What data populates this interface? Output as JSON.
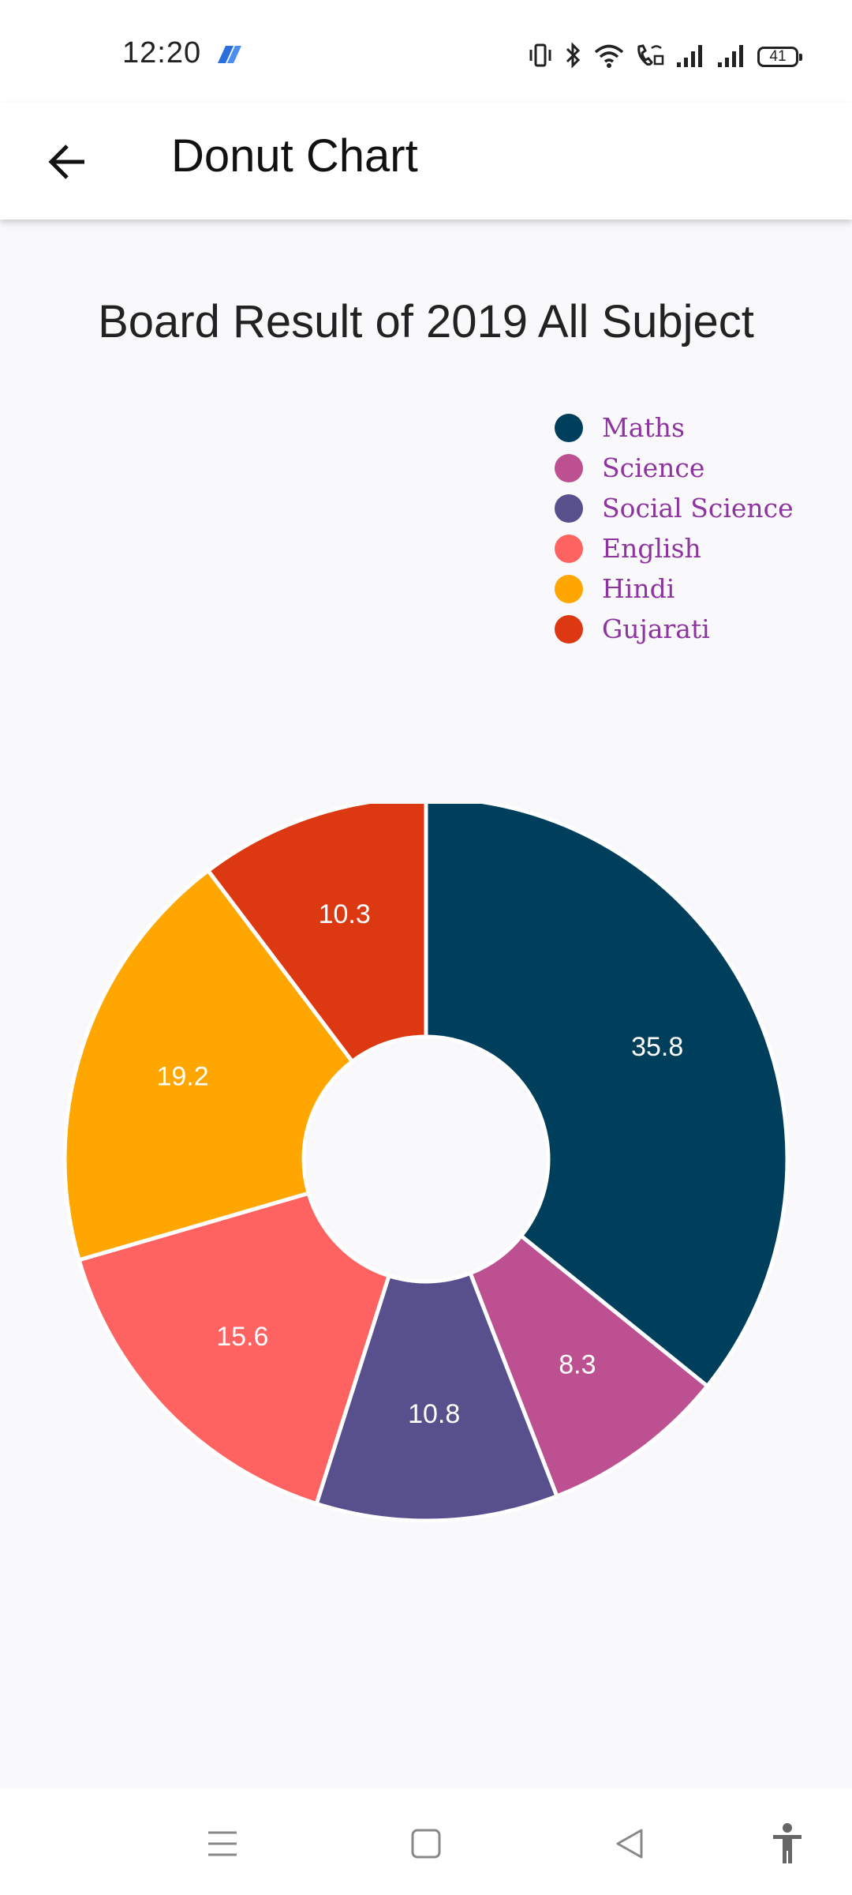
{
  "status_bar": {
    "time": "12:20",
    "battery": "41",
    "icons": [
      "app-notification-icon",
      "vibrate-icon",
      "bluetooth-icon",
      "wifi-icon",
      "wifi-calling-icon",
      "signal-icon",
      "signal-icon",
      "battery-icon"
    ]
  },
  "app_bar": {
    "title": "Donut Chart",
    "back_icon": "arrow-back-icon"
  },
  "chart_data": {
    "type": "pie",
    "subtype": "donut",
    "title": "Board Result of 2019 All Subject",
    "legend_position": "top-right",
    "categories": [
      "Maths",
      "Science",
      "Social Science",
      "English",
      "Hindi",
      "Gujarati"
    ],
    "values": [
      35.8,
      8.3,
      10.8,
      15.6,
      19.2,
      10.3
    ],
    "colors": [
      "#003f5c",
      "#bc5090",
      "#58508d",
      "#ff6361",
      "#ffa600",
      "#dc3912"
    ],
    "data_labels": [
      "35.8",
      "8.3",
      "10.8",
      "15.6",
      "19.2",
      "10.3"
    ]
  },
  "nav_bar": {
    "icons": [
      "menu-icon",
      "home-square-icon",
      "back-triangle-icon",
      "accessibility-icon"
    ]
  }
}
